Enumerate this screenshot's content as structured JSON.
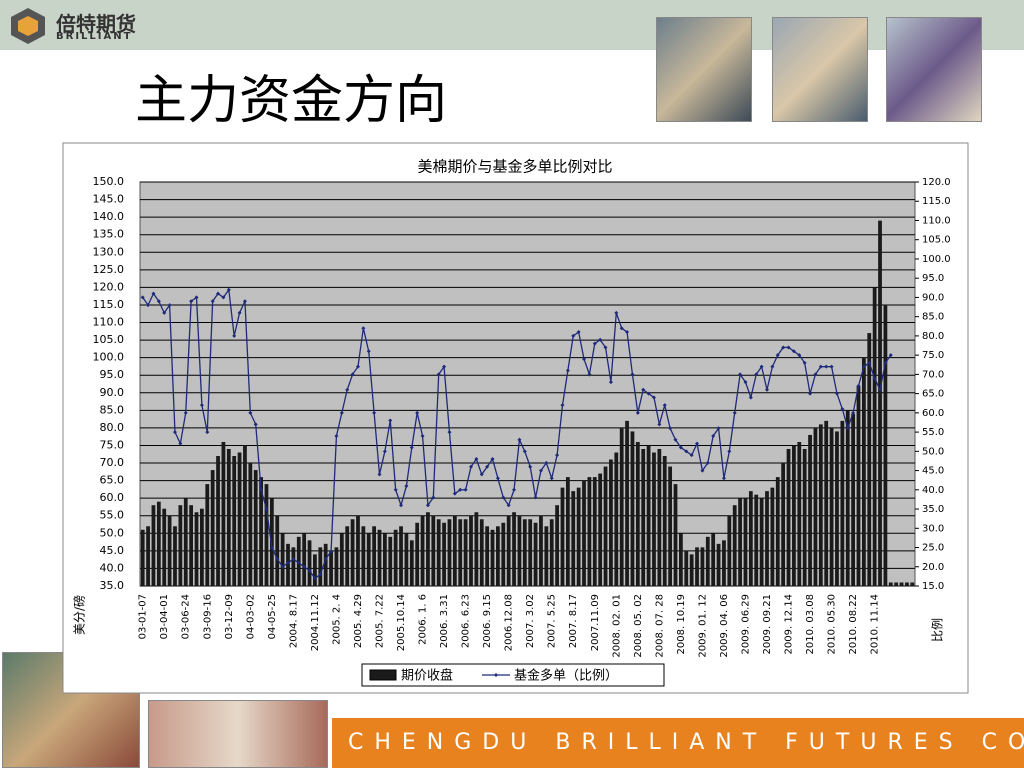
{
  "header": {
    "logo_cn": "倍特期货",
    "logo_en": "BRILLIANT",
    "title": "主力资金方向"
  },
  "footer": {
    "company": "CHENGDU BRILLIANT FUTURES CO.,LTD."
  },
  "chart_data": {
    "type": "bar",
    "title": "美棉期价与基金多单比例对比",
    "y_label": "美分/磅",
    "y2_label": "比例",
    "grid": true,
    "legend": "bottom",
    "categories": [
      "03-01-07",
      null,
      null,
      null,
      "03-04-01",
      null,
      null,
      null,
      "03-06-24",
      null,
      null,
      null,
      "03-09-16",
      null,
      null,
      null,
      "03-12-09",
      null,
      null,
      null,
      "04-03-02",
      null,
      null,
      null,
      "04-05-25",
      null,
      null,
      null,
      "2004. 8.17",
      null,
      null,
      null,
      "2004.11.12",
      null,
      null,
      null,
      "2005. 2. 4",
      null,
      null,
      null,
      "2005. 4.29",
      null,
      null,
      null,
      "2005. 7.22",
      null,
      null,
      null,
      "2005.10.14",
      null,
      null,
      null,
      "2006. 1. 6",
      null,
      null,
      null,
      "2006. 3.31",
      null,
      null,
      null,
      "2006. 6.23",
      null,
      null,
      null,
      "2006. 9.15",
      null,
      null,
      null,
      "2006.12.08",
      null,
      null,
      null,
      "2007. 3.02",
      null,
      null,
      null,
      "2007. 5.25",
      null,
      null,
      null,
      "2007. 8.17",
      null,
      null,
      null,
      "2007.11.09",
      null,
      null,
      null,
      "2008. 02. 01",
      null,
      null,
      null,
      "2008. 05. 02",
      null,
      null,
      null,
      "2008. 07. 28",
      null,
      null,
      null,
      "2008. 10.19",
      null,
      null,
      null,
      "2009. 01. 12",
      null,
      null,
      null,
      "2009. 04. 06",
      null,
      null,
      null,
      "2009. 06.29",
      null,
      null,
      null,
      "2009. 09.21",
      null,
      null,
      null,
      "2009. 12.14",
      null,
      null,
      null,
      "2010. 03.08",
      null,
      null,
      null,
      "2010. 05.30",
      null,
      null,
      null,
      "2010. 08.22",
      null,
      null,
      null,
      "2010. 11.14",
      null,
      null,
      null,
      null,
      null,
      null,
      null
    ],
    "series": [
      {
        "name": "期价收盘",
        "color": "#1a1a1a",
        "values": [
          51,
          52,
          58,
          59,
          57,
          55,
          52,
          58,
          60,
          58,
          56,
          57,
          64,
          68,
          72,
          76,
          74,
          72,
          73,
          75,
          70,
          68,
          66,
          64,
          60,
          55,
          50,
          47,
          46,
          49,
          50,
          48,
          44,
          46,
          47,
          45,
          46,
          50,
          52,
          54,
          55,
          52,
          50,
          52,
          51,
          50,
          49,
          51,
          52,
          50,
          48,
          53,
          55,
          56,
          55,
          54,
          53,
          54,
          55,
          54,
          54,
          55,
          56,
          54,
          52,
          51,
          52,
          53,
          55,
          56,
          55,
          54,
          54,
          53,
          55,
          52,
          54,
          58,
          63,
          66,
          62,
          63,
          65,
          66,
          66,
          67,
          69,
          71,
          73,
          80,
          82,
          79,
          76,
          74,
          75,
          73,
          74,
          72,
          69,
          64,
          50,
          45,
          44,
          46,
          46,
          49,
          50,
          47,
          48,
          55,
          58,
          60,
          60,
          62,
          61,
          60,
          62,
          63,
          66,
          70,
          74,
          75,
          76,
          74,
          78,
          80,
          81,
          82,
          80,
          79,
          82,
          85,
          84,
          92,
          100,
          107,
          120,
          139,
          115,
          36,
          36,
          36,
          36,
          36
        ]
      },
      {
        "name": "基金多单（比例）",
        "color": "#1f2a7a",
        "axis": "y2",
        "values": [
          90,
          88,
          91,
          89,
          86,
          88,
          55,
          52,
          60,
          89,
          90,
          62,
          55,
          89,
          91,
          90,
          92,
          80,
          86,
          89,
          60,
          57,
          40,
          35,
          25,
          22,
          20,
          21,
          22,
          21,
          20,
          19,
          17,
          18,
          22,
          24,
          54,
          60,
          66,
          70,
          72,
          82,
          76,
          60,
          44,
          50,
          58,
          40,
          36,
          41,
          51,
          60,
          54,
          36,
          38,
          70,
          72,
          55,
          39,
          40,
          40,
          46,
          48,
          44,
          46,
          48,
          43,
          38,
          36,
          40,
          53,
          50,
          46,
          38,
          45,
          47,
          43,
          49,
          62,
          71,
          80,
          81,
          74,
          70,
          78,
          79,
          77,
          68,
          86,
          82,
          81,
          70,
          60,
          66,
          65,
          64,
          57,
          62,
          56,
          53,
          51,
          50,
          49,
          52,
          45,
          47,
          54,
          56,
          43,
          50,
          60,
          70,
          68,
          64,
          70,
          72,
          66,
          72,
          75,
          77,
          77,
          76,
          75,
          73,
          65,
          70,
          72,
          72,
          72,
          65,
          61,
          56,
          60,
          67,
          72,
          73,
          69,
          66,
          73,
          75,
          null,
          null,
          null,
          null
        ]
      }
    ],
    "ylim": [
      35,
      150
    ],
    "yticks": [
      {
        "value": 35,
        "label": "35.0"
      },
      {
        "value": 40,
        "label": "40.0"
      },
      {
        "value": 45,
        "label": "45.0"
      },
      {
        "value": 50,
        "label": "50.0"
      },
      {
        "value": 55,
        "label": "55.0"
      },
      {
        "value": 60,
        "label": "60.0"
      },
      {
        "value": 65,
        "label": "65.0"
      },
      {
        "value": 70,
        "label": "70.0"
      },
      {
        "value": 75,
        "label": "75.0"
      },
      {
        "value": 80,
        "label": "80.0"
      },
      {
        "value": 85,
        "label": "85.0"
      },
      {
        "value": 90,
        "label": "90.0"
      },
      {
        "value": 95,
        "label": "95.0"
      },
      {
        "value": 100,
        "label": "100.0"
      },
      {
        "value": 105,
        "label": "105.0"
      },
      {
        "value": 110,
        "label": "110.0"
      },
      {
        "value": 115,
        "label": "115.0"
      },
      {
        "value": 120,
        "label": "120.0"
      },
      {
        "value": 125,
        "label": "125.0"
      },
      {
        "value": 130,
        "label": "130.0"
      },
      {
        "value": 135,
        "label": "135.0"
      },
      {
        "value": 140,
        "label": "140.0"
      },
      {
        "value": 145,
        "label": "145.0"
      },
      {
        "value": 150,
        "label": "150.0"
      }
    ],
    "y2lim": [
      15,
      120
    ],
    "y2ticks": [
      {
        "value": 15,
        "label": "15.0"
      },
      {
        "value": 20,
        "label": "20.0"
      },
      {
        "value": 25,
        "label": "25.0"
      },
      {
        "value": 30,
        "label": "30.0"
      },
      {
        "value": 35,
        "label": "35.0"
      },
      {
        "value": 40,
        "label": "40.0"
      },
      {
        "value": 45,
        "label": "45.0"
      },
      {
        "value": 50,
        "label": "50.0"
      },
      {
        "value": 55,
        "label": "55.0"
      },
      {
        "value": 60,
        "label": "60.0"
      },
      {
        "value": 65,
        "label": "65.0"
      },
      {
        "value": 70,
        "label": "70.0"
      },
      {
        "value": 75,
        "label": "75.0"
      },
      {
        "value": 80,
        "label": "80.0"
      },
      {
        "value": 85,
        "label": "85.0"
      },
      {
        "value": 90,
        "label": "90.0"
      },
      {
        "value": 95,
        "label": "95.0"
      },
      {
        "value": 100,
        "label": "100.0"
      },
      {
        "value": 105,
        "label": "105.0"
      },
      {
        "value": 110,
        "label": "110.0"
      },
      {
        "value": 115,
        "label": "115.0"
      },
      {
        "value": 120,
        "label": "120.0"
      }
    ]
  }
}
